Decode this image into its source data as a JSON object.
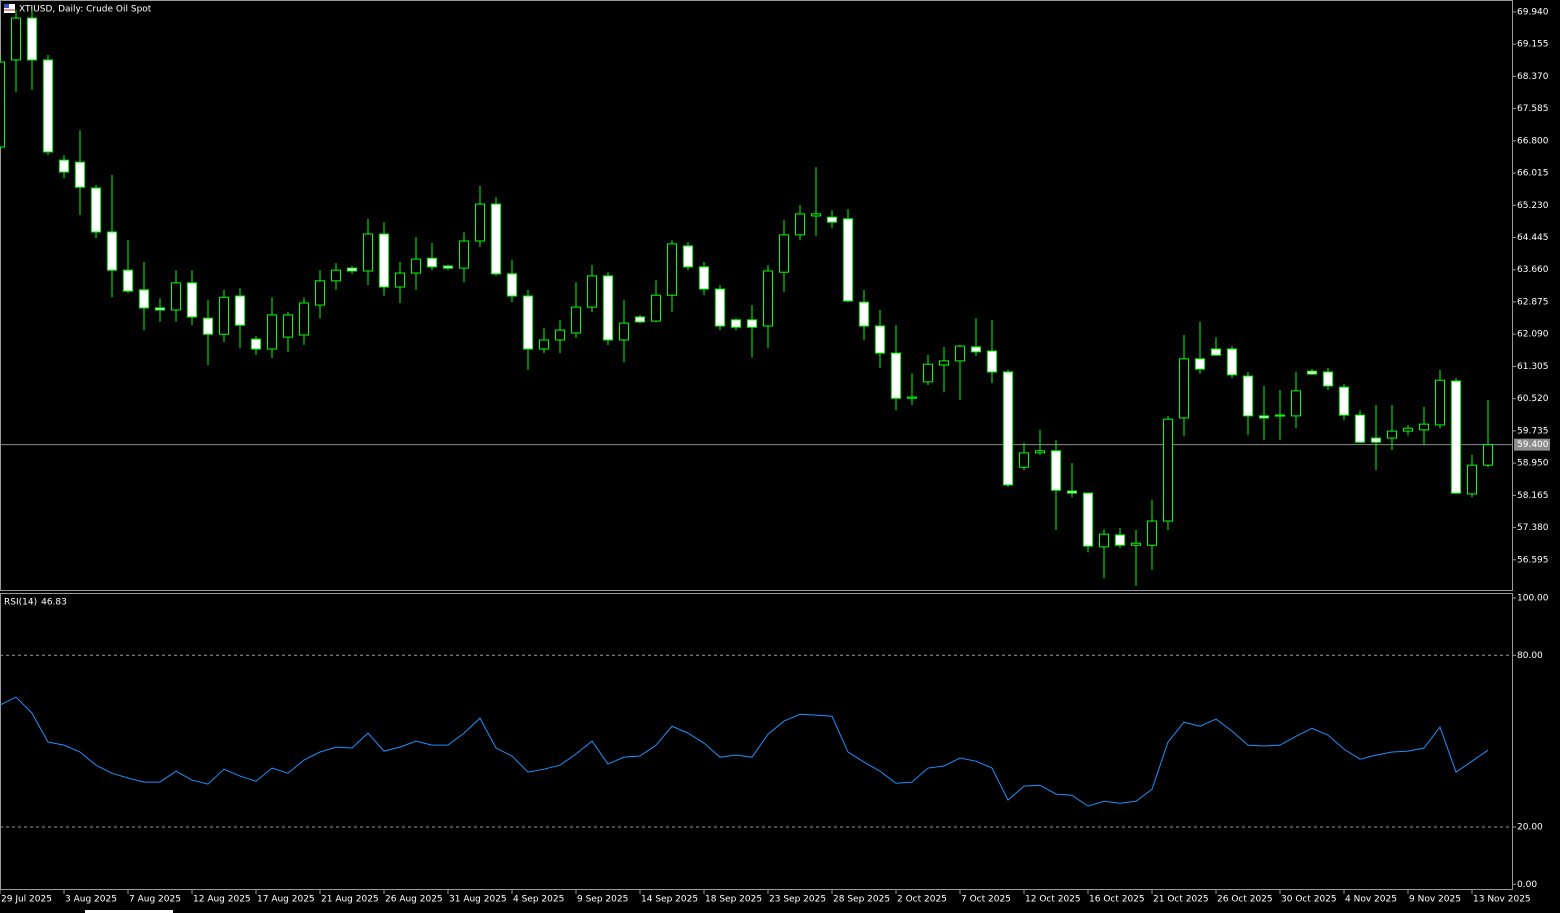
{
  "chart_data": [
    {
      "type": "candlestick",
      "title": "XTIUSD, Daily: Crude Oil Spot",
      "open": [
        66.65,
        68.77,
        69.79,
        68.77,
        66.33,
        66.28,
        65.65,
        64.58,
        63.65,
        63.17,
        62.73,
        62.68,
        63.34,
        62.48,
        62.09,
        63.02,
        61.97,
        61.73,
        62.02,
        62.07,
        62.8,
        63.39,
        63.7,
        63.63,
        64.53,
        63.24,
        63.58,
        63.94,
        63.75,
        63.7,
        64.36,
        65.26,
        63.56,
        63.02,
        61.73,
        61.95,
        62.12,
        62.75,
        63.51,
        61.95,
        62.51,
        62.41,
        63.04,
        64.24,
        63.73,
        63.19,
        62.44,
        62.44,
        62.29,
        63.6,
        64.51,
        64.97,
        64.94,
        64.9,
        62.87,
        62.29,
        61.63,
        60.53,
        60.93,
        61.34,
        61.44,
        61.78,
        61.68,
        61.17,
        58.85,
        59.2,
        59.25,
        58.27,
        58.22,
        56.91,
        57.2,
        56.95,
        56.95,
        57.54,
        60.05,
        61.49,
        61.73,
        61.73,
        61.07,
        60.1,
        60.12,
        60.1,
        61.19,
        61.17,
        60.8,
        60.12,
        59.56,
        59.56,
        59.73,
        59.76,
        59.88,
        60.95,
        58.2,
        58.9
      ],
      "high": [
        68.89,
        69.99,
        69.99,
        68.89,
        66.45,
        67.06,
        65.72,
        65.97,
        64.38,
        63.85,
        62.97,
        63.65,
        63.65,
        62.92,
        63.17,
        63.21,
        62.05,
        62.99,
        62.63,
        62.99,
        63.65,
        63.82,
        63.75,
        64.9,
        64.82,
        63.85,
        64.46,
        64.31,
        63.78,
        64.58,
        65.7,
        65.43,
        63.9,
        63.17,
        62.24,
        62.44,
        63.36,
        63.78,
        63.6,
        62.92,
        62.56,
        63.41,
        64.38,
        64.34,
        63.85,
        63.29,
        62.48,
        62.8,
        63.78,
        64.87,
        65.24,
        66.16,
        65.11,
        65.14,
        63.17,
        62.68,
        62.31,
        61.14,
        61.58,
        61.78,
        61.83,
        62.48,
        62.44,
        61.22,
        59.44,
        59.76,
        59.51,
        58.95,
        58.22,
        57.34,
        57.37,
        57.32,
        58.05,
        60.1,
        62.07,
        62.39,
        62.02,
        61.8,
        61.17,
        60.83,
        60.73,
        61.17,
        61.24,
        61.27,
        60.88,
        60.24,
        60.37,
        60.37,
        59.88,
        60.32,
        61.22,
        61.02,
        59.15,
        60.49
      ],
      "low": [
        66.58,
        67.99,
        68.04,
        66.45,
        65.89,
        64.99,
        64.43,
        62.99,
        63.09,
        62.19,
        62.39,
        62.39,
        62.31,
        61.34,
        61.9,
        61.75,
        61.58,
        61.51,
        61.66,
        61.83,
        62.48,
        63.17,
        63.56,
        63.29,
        63.02,
        62.85,
        63.17,
        63.65,
        63.65,
        63.36,
        64.21,
        63.51,
        62.87,
        61.22,
        61.63,
        61.63,
        62.0,
        62.63,
        61.83,
        61.41,
        62.36,
        62.39,
        62.63,
        63.65,
        63.04,
        62.19,
        62.19,
        61.53,
        61.75,
        63.12,
        64.38,
        64.48,
        64.68,
        62.87,
        61.95,
        61.27,
        60.24,
        60.37,
        60.85,
        60.68,
        60.49,
        61.56,
        60.9,
        58.37,
        58.78,
        59.15,
        57.32,
        58.12,
        56.78,
        56.15,
        56.88,
        55.96,
        56.35,
        57.32,
        59.61,
        61.12,
        61.56,
        61.02,
        59.63,
        59.51,
        59.51,
        59.8,
        61.1,
        60.73,
        60.0,
        59.44,
        58.78,
        59.27,
        59.63,
        59.39,
        59.8,
        58.2,
        58.12,
        58.85
      ],
      "close": [
        68.72,
        69.79,
        68.77,
        66.53,
        66.04,
        65.67,
        64.58,
        63.65,
        63.14,
        62.73,
        62.68,
        63.34,
        62.51,
        62.09,
        62.99,
        62.31,
        61.73,
        62.56,
        62.56,
        62.85,
        63.39,
        63.65,
        63.63,
        64.53,
        63.24,
        63.58,
        63.92,
        63.73,
        63.7,
        64.36,
        65.26,
        63.56,
        63.02,
        61.73,
        61.95,
        62.19,
        62.75,
        63.51,
        61.95,
        62.36,
        62.39,
        63.04,
        64.29,
        63.73,
        63.19,
        62.29,
        62.26,
        62.26,
        63.63,
        64.51,
        65.02,
        65.02,
        64.82,
        62.9,
        62.29,
        61.63,
        60.53,
        60.56,
        61.36,
        61.44,
        61.8,
        61.66,
        61.17,
        58.42,
        59.2,
        59.25,
        58.29,
        58.22,
        56.93,
        57.22,
        56.95,
        57.0,
        57.54,
        60.02,
        61.49,
        61.24,
        61.58,
        61.1,
        60.1,
        60.05,
        60.1,
        60.71,
        61.12,
        60.83,
        60.12,
        59.46,
        59.46,
        59.73,
        59.8,
        59.9,
        60.97,
        58.22,
        58.9,
        59.4
      ],
      "up_color": "#000000",
      "down_color": "#ffffff",
      "wick_color": "#00ff00",
      "ylim": [
        55.86,
        70.23
      ],
      "yticks": [
        {
          "value": 69.94,
          "label": "69.940"
        },
        {
          "value": 69.155,
          "label": "69.155"
        },
        {
          "value": 68.37,
          "label": "68.370"
        },
        {
          "value": 67.585,
          "label": "67.585"
        },
        {
          "value": 66.8,
          "label": "66.800"
        },
        {
          "value": 66.015,
          "label": "66.015"
        },
        {
          "value": 65.23,
          "label": "65.230"
        },
        {
          "value": 64.445,
          "label": "64.445"
        },
        {
          "value": 63.66,
          "label": "63.660"
        },
        {
          "value": 62.875,
          "label": "62.875"
        },
        {
          "value": 62.09,
          "label": "62.090"
        },
        {
          "value": 61.305,
          "label": "61.305"
        },
        {
          "value": 60.52,
          "label": "60.520"
        },
        {
          "value": 59.735,
          "label": "59.735"
        },
        {
          "value": 58.95,
          "label": "58.950"
        },
        {
          "value": 58.165,
          "label": "58.165"
        },
        {
          "value": 57.38,
          "label": "57.380"
        },
        {
          "value": 56.595,
          "label": "56.595"
        }
      ],
      "last_price": {
        "value": 59.4,
        "label": "59.400"
      },
      "grid": false
    },
    {
      "type": "line",
      "title": "RSI(14)",
      "categories": [
        "29 Jul 2025",
        null,
        null,
        null,
        "3 Aug 2025",
        null,
        null,
        null,
        "7 Aug 2025",
        null,
        null,
        null,
        "12 Aug 2025",
        null,
        null,
        null,
        "17 Aug 2025",
        null,
        null,
        null,
        "21 Aug 2025",
        null,
        null,
        null,
        "26 Aug 2025",
        null,
        null,
        null,
        "31 Aug 2025",
        null,
        null,
        null,
        "4 Sep 2025",
        null,
        null,
        null,
        "9 Sep 2025",
        null,
        null,
        null,
        "14 Sep 2025",
        null,
        null,
        null,
        "18 Sep 2025",
        null,
        null,
        null,
        "23 Sep 2025",
        null,
        null,
        null,
        "28 Sep 2025",
        null,
        null,
        null,
        "2 Oct 2025",
        null,
        null,
        null,
        "7 Oct 2025",
        null,
        null,
        null,
        "12 Oct 2025",
        null,
        null,
        null,
        "16 Oct 2025",
        null,
        null,
        null,
        "21 Oct 2025",
        null,
        null,
        null,
        "26 Oct 2025",
        null,
        null,
        null,
        "30 Oct 2025",
        null,
        null,
        null,
        "4 Nov 2025",
        null,
        null,
        null,
        "9 Nov 2025",
        null,
        null,
        null,
        "13 Nov 2025",
        null
      ],
      "values": [
        62.6,
        65.4,
        59.8,
        49.7,
        48.6,
        46.2,
        41.6,
        38.8,
        37.1,
        35.7,
        35.7,
        39.5,
        36.4,
        35.0,
        40.2,
        37.8,
        36.0,
        40.6,
        38.8,
        43.4,
        46.2,
        47.9,
        47.6,
        52.8,
        46.5,
        47.9,
        50.0,
        48.6,
        48.6,
        52.8,
        58.0,
        47.6,
        44.8,
        39.2,
        40.2,
        41.6,
        45.5,
        50.0,
        42.0,
        44.4,
        44.8,
        48.6,
        55.2,
        52.8,
        49.3,
        44.4,
        45.1,
        44.4,
        52.4,
        57.0,
        59.4,
        59.1,
        58.7,
        46.2,
        42.7,
        39.5,
        35.3,
        35.7,
        40.6,
        41.3,
        44.1,
        43.0,
        40.6,
        29.4,
        34.3,
        34.6,
        31.5,
        31.1,
        27.3,
        29.0,
        28.3,
        29.0,
        33.2,
        49.7,
        56.6,
        55.2,
        57.7,
        53.5,
        48.6,
        48.3,
        48.6,
        51.7,
        54.5,
        52.1,
        47.2,
        43.7,
        45.1,
        46.2,
        46.5,
        47.6,
        54.9,
        39.2,
        43.0,
        46.83
      ],
      "color": "#1e90ff",
      "ylim": [
        -2,
        101.4
      ],
      "yticks": [
        {
          "value": 100,
          "label": "100.00"
        },
        {
          "value": 80,
          "label": "80.00"
        },
        {
          "value": 20,
          "label": "20.00"
        },
        {
          "value": 0,
          "label": "0.00"
        }
      ],
      "levels": [
        80,
        20
      ]
    }
  ]
}
